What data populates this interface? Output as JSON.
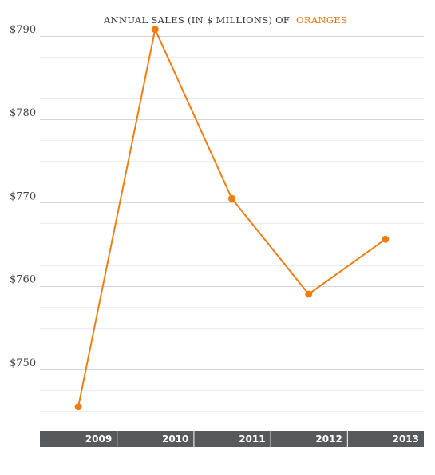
{
  "chart_data": {
    "type": "line",
    "title_prefix": "ANNUAL SALES (IN $ MILLIONS) OF",
    "title_highlight": "ORANGES",
    "categories": [
      "2009",
      "2010",
      "2011",
      "2012",
      "2013"
    ],
    "series": [
      {
        "values": [
          745.5,
          790.8,
          770.5,
          759.0,
          765.6
        ]
      }
    ],
    "yticks": [
      750,
      760,
      770,
      780,
      790
    ],
    "ytick_labels": [
      "$750",
      "$760",
      "$770",
      "$780",
      "$790"
    ],
    "ylim": [
      743.5,
      792
    ],
    "grid": true,
    "xlabel": "",
    "ylabel": ""
  },
  "colors": {
    "series": "#f07d12",
    "title_highlight": "#e0720a",
    "title": "#333333",
    "axis_band": "#58595b"
  }
}
